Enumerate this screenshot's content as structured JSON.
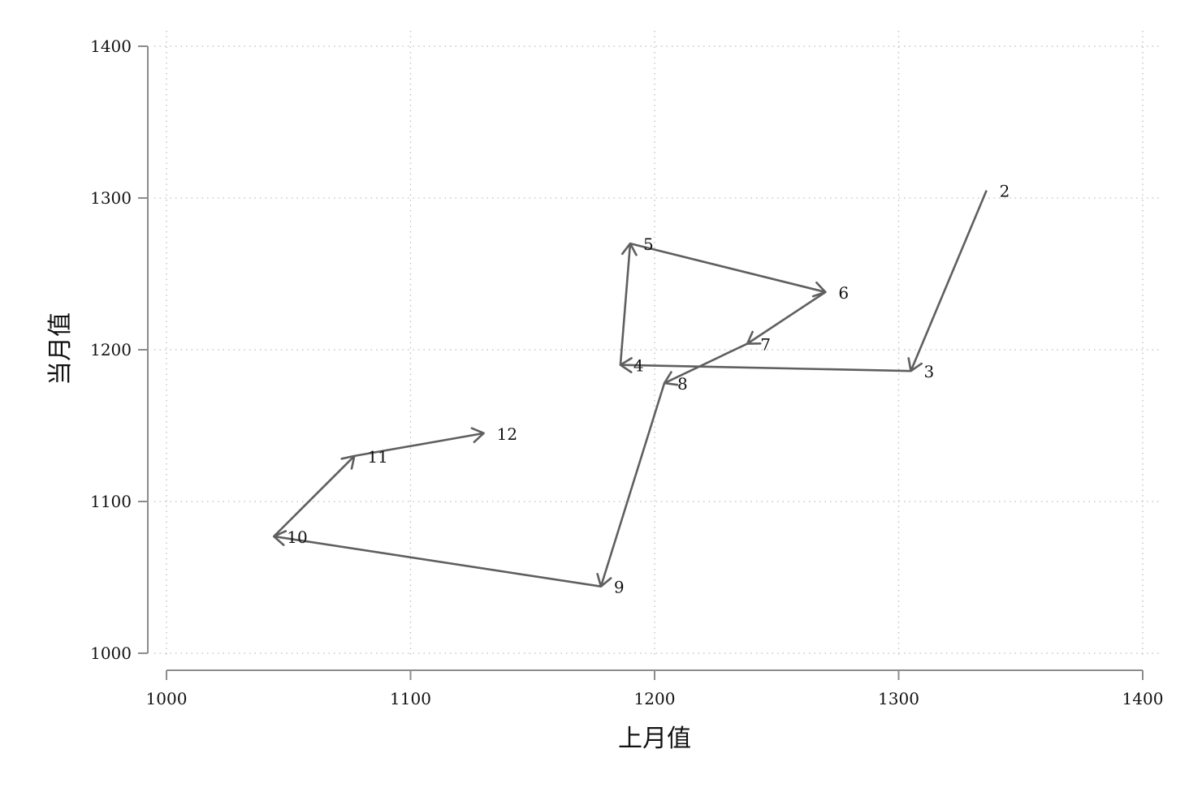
{
  "chart_data": {
    "type": "line",
    "subtype": "connected-scatter-with-arrows",
    "title": "",
    "xlabel": "上月值",
    "ylabel": "当月值",
    "xlim": [
      1000,
      1400
    ],
    "ylim": [
      1000,
      1400
    ],
    "xticks": [
      1000,
      1100,
      1200,
      1300,
      1400
    ],
    "yticks": [
      1000,
      1100,
      1200,
      1300,
      1400
    ],
    "grid": true,
    "legend": "none",
    "line_color": "#5f5f5f",
    "points": [
      {
        "label": "2",
        "x": 1336,
        "y": 1305
      },
      {
        "label": "3",
        "x": 1305,
        "y": 1186
      },
      {
        "label": "4",
        "x": 1186,
        "y": 1190
      },
      {
        "label": "5",
        "x": 1190,
        "y": 1270
      },
      {
        "label": "6",
        "x": 1270,
        "y": 1238
      },
      {
        "label": "7",
        "x": 1238,
        "y": 1204
      },
      {
        "label": "8",
        "x": 1204,
        "y": 1178
      },
      {
        "label": "9",
        "x": 1178,
        "y": 1044
      },
      {
        "label": "10",
        "x": 1044,
        "y": 1077
      },
      {
        "label": "11",
        "x": 1077,
        "y": 1130
      },
      {
        "label": "12",
        "x": 1130,
        "y": 1145
      }
    ]
  }
}
